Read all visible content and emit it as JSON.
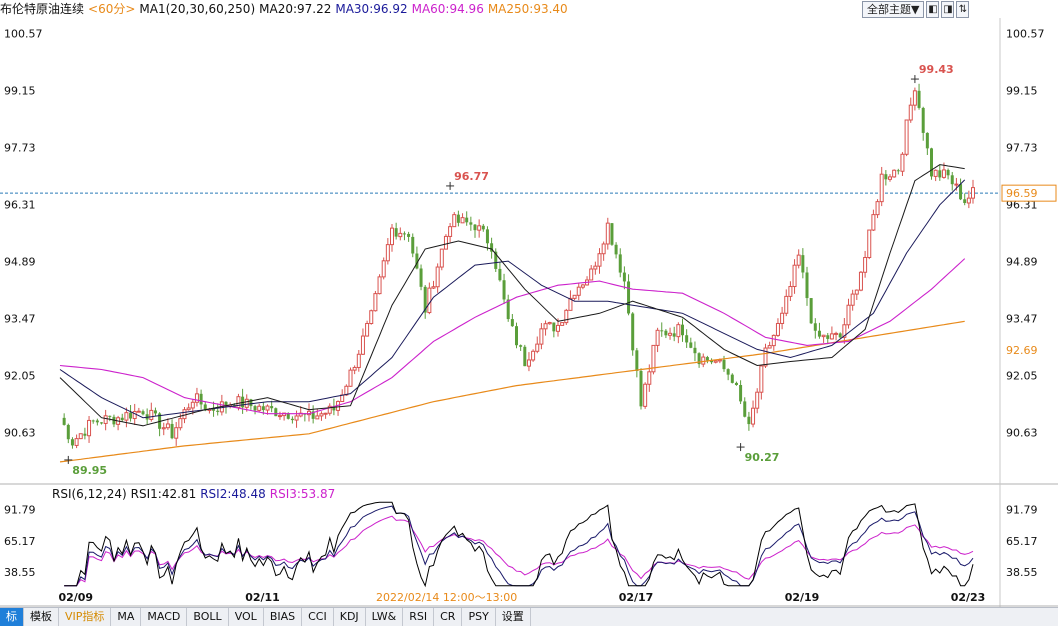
{
  "header": {
    "symbol": "布伦特原油连续",
    "period": "<60分>",
    "indicator": "MA1(20,30,60,250)",
    "ma20": "MA20:97.22",
    "ma30": "MA30:96.92",
    "ma60": "MA60:94.96",
    "ma250": "MA250:93.40"
  },
  "toolbar": {
    "theme_label": "全部主题▼",
    "btn1": "◧",
    "btn2": "◨",
    "btn3": "⇅"
  },
  "rsi_header": {
    "name": "RSI(6,12,24)",
    "rsi1": "RSI1:42.81",
    "rsi2": "RSI2:48.48",
    "rsi3": "RSI3:53.87"
  },
  "colors": {
    "up": "#d9534f",
    "down": "#5a9e3a",
    "ma20": "#1a1a1a",
    "ma30": "#1a1a5a",
    "ma60": "#cc22cc",
    "ma250": "#e88a1a",
    "rsi1": "#000000",
    "rsi2": "#1a1a6a",
    "rsi3": "#cc22cc"
  },
  "chart_data": [
    {
      "type": "candlestick",
      "title": "布伦特原油连续",
      "ylim": [
        89.5,
        100.9
      ],
      "y_ticks": [
        "100.57",
        "99.15",
        "97.73",
        "96.31",
        "94.89",
        "93.47",
        "92.05",
        "90.63"
      ],
      "y_tick_values": [
        100.57,
        99.15,
        97.73,
        96.31,
        94.89,
        93.47,
        92.05,
        90.63
      ],
      "x_labels": [
        "02/09",
        "02/11",
        "02/17",
        "02/19",
        "02/23"
      ],
      "x_label_index": [
        3,
        48,
        138,
        178,
        218
      ],
      "ref_price": "96.59",
      "ref_price_value": 96.59,
      "extra_price_label": "92.69",
      "extra_price_value": 92.69,
      "annotations": [
        {
          "text": "96.77",
          "index": 94,
          "value": 96.77,
          "kind": "high"
        },
        {
          "text": "99.43",
          "index": 206,
          "value": 99.43,
          "kind": "high"
        },
        {
          "text": "89.95",
          "index": 2,
          "value": 89.95,
          "kind": "low"
        },
        {
          "text": "90.27",
          "index": 164,
          "value": 90.27,
          "kind": "low"
        }
      ],
      "close_anchors": [
        [
          0,
          91.0
        ],
        [
          3,
          90.4
        ],
        [
          8,
          90.9
        ],
        [
          14,
          91.0
        ],
        [
          20,
          91.2
        ],
        [
          27,
          90.6
        ],
        [
          32,
          91.5
        ],
        [
          36,
          91.2
        ],
        [
          42,
          91.4
        ],
        [
          50,
          91.2
        ],
        [
          56,
          91.1
        ],
        [
          60,
          91.0
        ],
        [
          66,
          91.2
        ],
        [
          70,
          92.1
        ],
        [
          75,
          93.5
        ],
        [
          80,
          95.7
        ],
        [
          84,
          95.6
        ],
        [
          88,
          93.7
        ],
        [
          94,
          95.9
        ],
        [
          100,
          95.8
        ],
        [
          104,
          95.3
        ],
        [
          108,
          93.4
        ],
        [
          112,
          92.4
        ],
        [
          116,
          93.2
        ],
        [
          120,
          93.3
        ],
        [
          124,
          94.2
        ],
        [
          128,
          94.6
        ],
        [
          132,
          95.8
        ],
        [
          136,
          94.4
        ],
        [
          140,
          91.3
        ],
        [
          144,
          93.1
        ],
        [
          150,
          93.2
        ],
        [
          154,
          92.5
        ],
        [
          158,
          92.4
        ],
        [
          162,
          92.0
        ],
        [
          166,
          90.7
        ],
        [
          170,
          92.6
        ],
        [
          174,
          93.5
        ],
        [
          178,
          95.0
        ],
        [
          182,
          93.0
        ],
        [
          188,
          93.0
        ],
        [
          194,
          95.0
        ],
        [
          198,
          97.0
        ],
        [
          202,
          97.2
        ],
        [
          206,
          99.3
        ],
        [
          210,
          97.1
        ],
        [
          214,
          97.0
        ],
        [
          218,
          96.4
        ],
        [
          220,
          96.59
        ]
      ],
      "ma20_anchors": [
        [
          0,
          92.0
        ],
        [
          10,
          91.0
        ],
        [
          20,
          90.8
        ],
        [
          35,
          91.2
        ],
        [
          50,
          91.5
        ],
        [
          60,
          91.2
        ],
        [
          70,
          91.3
        ],
        [
          80,
          93.8
        ],
        [
          88,
          95.2
        ],
        [
          96,
          95.4
        ],
        [
          104,
          95.2
        ],
        [
          112,
          94.2
        ],
        [
          120,
          93.4
        ],
        [
          130,
          93.6
        ],
        [
          138,
          93.9
        ],
        [
          150,
          93.5
        ],
        [
          160,
          92.7
        ],
        [
          168,
          92.3
        ],
        [
          176,
          92.4
        ],
        [
          186,
          92.5
        ],
        [
          194,
          93.2
        ],
        [
          200,
          95.1
        ],
        [
          206,
          96.9
        ],
        [
          212,
          97.3
        ],
        [
          218,
          97.2
        ]
      ],
      "ma30_anchors": [
        [
          0,
          92.2
        ],
        [
          10,
          91.5
        ],
        [
          20,
          91.0
        ],
        [
          35,
          91.2
        ],
        [
          50,
          91.4
        ],
        [
          60,
          91.4
        ],
        [
          70,
          91.6
        ],
        [
          80,
          92.5
        ],
        [
          90,
          94.0
        ],
        [
          100,
          94.8
        ],
        [
          108,
          94.9
        ],
        [
          116,
          94.3
        ],
        [
          124,
          93.9
        ],
        [
          132,
          93.9
        ],
        [
          138,
          93.8
        ],
        [
          150,
          93.6
        ],
        [
          160,
          93.1
        ],
        [
          168,
          92.7
        ],
        [
          176,
          92.5
        ],
        [
          186,
          92.8
        ],
        [
          196,
          93.6
        ],
        [
          204,
          95.1
        ],
        [
          212,
          96.3
        ],
        [
          218,
          96.92
        ]
      ],
      "ma60_anchors": [
        [
          0,
          92.3
        ],
        [
          10,
          92.2
        ],
        [
          20,
          92.0
        ],
        [
          30,
          91.5
        ],
        [
          40,
          91.3
        ],
        [
          50,
          91.1
        ],
        [
          60,
          91.1
        ],
        [
          70,
          91.4
        ],
        [
          80,
          92.0
        ],
        [
          90,
          92.9
        ],
        [
          100,
          93.5
        ],
        [
          110,
          94.0
        ],
        [
          120,
          94.3
        ],
        [
          130,
          94.4
        ],
        [
          138,
          94.2
        ],
        [
          150,
          94.1
        ],
        [
          160,
          93.6
        ],
        [
          170,
          93.0
        ],
        [
          180,
          92.8
        ],
        [
          190,
          92.9
        ],
        [
          200,
          93.4
        ],
        [
          210,
          94.2
        ],
        [
          218,
          94.96
        ]
      ],
      "ma250_anchors": [
        [
          0,
          89.9
        ],
        [
          30,
          90.3
        ],
        [
          60,
          90.6
        ],
        [
          90,
          91.4
        ],
        [
          110,
          91.8
        ],
        [
          140,
          92.2
        ],
        [
          170,
          92.6
        ],
        [
          200,
          93.1
        ],
        [
          218,
          93.4
        ]
      ]
    },
    {
      "type": "line",
      "title": "RSI(6,12,24)",
      "ylim": [
        25,
        100
      ],
      "y_ticks": [
        "91.79",
        "65.17",
        "38.55"
      ],
      "y_tick_values": [
        91.79,
        65.17,
        38.55
      ],
      "time_label": "2022/02/14 12:00～13:00",
      "series": [
        {
          "name": "RSI1"
        },
        {
          "name": "RSI2"
        },
        {
          "name": "RSI3"
        }
      ]
    }
  ],
  "tabs": [
    "标",
    "模板",
    "VIP指标",
    "MA",
    "MACD",
    "BOLL",
    "VOL",
    "BIAS",
    "CCI",
    "KDJ",
    "LW&",
    "RSI",
    "CR",
    "PSY",
    "设置"
  ]
}
